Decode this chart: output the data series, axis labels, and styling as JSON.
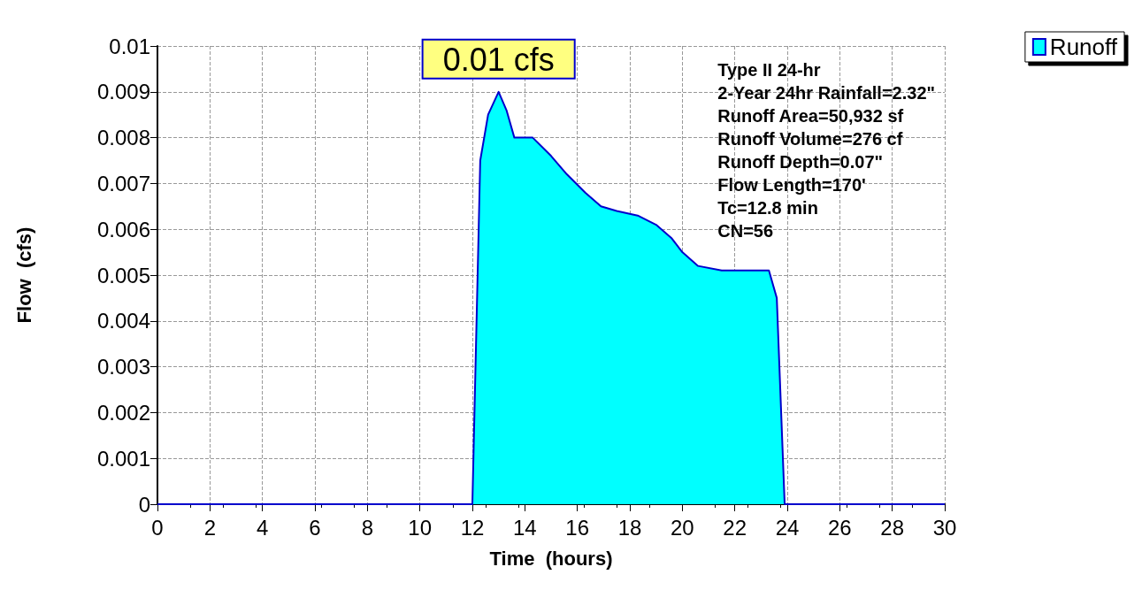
{
  "chart_data": {
    "type": "area",
    "xlabel": "Time  (hours)",
    "ylabel": "Flow  (cfs)",
    "x": [
      0,
      2,
      4,
      6,
      8,
      10,
      12,
      12.3,
      12.6,
      13,
      13.3,
      13.6,
      14.3,
      15,
      15.6,
      16.3,
      16.9,
      17.5,
      18.3,
      19,
      19.6,
      20,
      20.6,
      21.5,
      22.5,
      23.3,
      23.6,
      23.9,
      24.5,
      26,
      28,
      30
    ],
    "series": [
      {
        "name": "Runoff",
        "color": "#00ffff",
        "values": [
          0,
          0,
          0,
          0,
          0,
          0,
          0,
          0.0075,
          0.0085,
          0.009,
          0.0086,
          0.008,
          0.008,
          0.0076,
          0.0072,
          0.0068,
          0.0065,
          0.0064,
          0.0063,
          0.0061,
          0.0058,
          0.0055,
          0.0052,
          0.0051,
          0.0051,
          0.0051,
          0.0045,
          0,
          0,
          0,
          0,
          0
        ]
      }
    ],
    "xlim": [
      0,
      30
    ],
    "xticks": [
      0,
      2,
      4,
      6,
      8,
      10,
      12,
      14,
      16,
      18,
      20,
      22,
      24,
      26,
      28,
      30
    ],
    "ylim": [
      0,
      0.01
    ],
    "yticks": [
      0,
      0.001,
      0.002,
      0.003,
      0.004,
      0.005,
      0.006,
      0.007,
      0.008,
      0.009,
      0.01
    ],
    "grid": true,
    "legend": "top right",
    "marker": "none",
    "line_style": "solid",
    "annotations": [
      {
        "text": "0.01 cfs",
        "x": 13,
        "y": 0.009
      },
      "Type II 24-hr",
      "2-Year 24hr Rainfall=2.32\"",
      "Runoff Area=50,932 sf",
      "Runoff Volume=276 cf",
      "Runoff Depth=0.07\"",
      "Flow Length=170'",
      "Tc=12.8 min",
      "CN=56"
    ]
  }
}
